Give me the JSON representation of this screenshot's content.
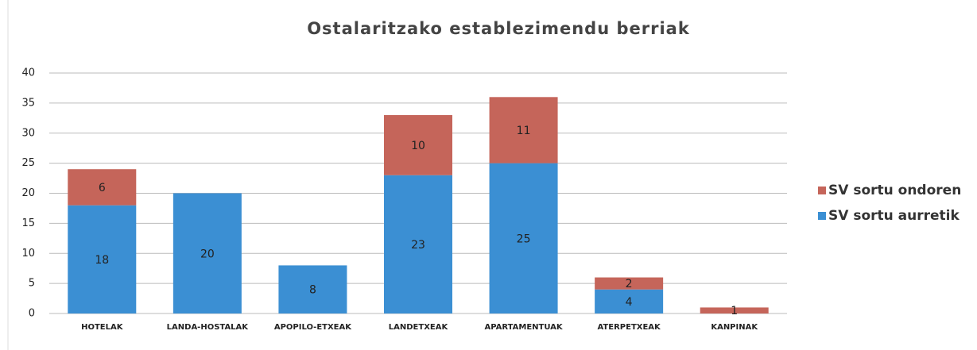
{
  "chart_data": {
    "type": "bar",
    "stacked": true,
    "title": "Ostalaritzako establezimendu berriak",
    "categories": [
      "HOTELAK",
      "LANDA-HOSTALAK",
      "APOPILO-ETXEAK",
      "LANDETXEAK",
      "APARTAMENTUAK",
      "ATERPETXEAK",
      "KANPINAK"
    ],
    "series": [
      {
        "name": "SV sortu aurretik",
        "color": "#3b8fd3",
        "values": [
          18,
          20,
          8,
          23,
          25,
          4,
          null
        ]
      },
      {
        "name": "SV sortu ondoren",
        "color": "#c5655a",
        "values": [
          6,
          null,
          null,
          10,
          11,
          2,
          1
        ]
      }
    ],
    "ylim": [
      0,
      40
    ],
    "yticks": [
      0,
      5,
      10,
      15,
      20,
      25,
      30,
      35,
      40
    ],
    "grid": true,
    "legend": "right"
  }
}
